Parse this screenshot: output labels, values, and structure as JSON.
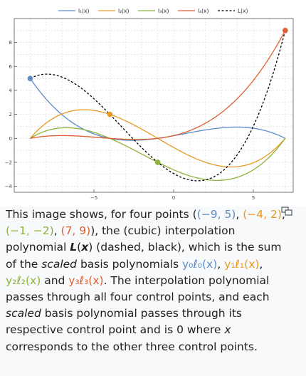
{
  "chart_data": {
    "type": "line",
    "xlim": [
      -10,
      7.5
    ],
    "ylim": [
      -4.5,
      10
    ],
    "xticks": [
      -5,
      0,
      5
    ],
    "yticks": [
      -4,
      -2,
      0,
      2,
      4,
      6,
      8
    ],
    "grid": true,
    "legend_position": "top",
    "points": [
      {
        "x": -9,
        "y": 5,
        "color": "#5c8cc7"
      },
      {
        "x": -4,
        "y": 2,
        "color": "#e69a20"
      },
      {
        "x": -1,
        "y": -2,
        "color": "#8db43a"
      },
      {
        "x": 7,
        "y": 9,
        "color": "#de6030"
      }
    ],
    "series": [
      {
        "name": "l₁(x)",
        "style": "solid",
        "color": "#5c8cc7"
      },
      {
        "name": "l₂(x)",
        "style": "solid",
        "color": "#e69a20"
      },
      {
        "name": "l₃(x)",
        "style": "solid",
        "color": "#8db43a"
      },
      {
        "name": "l₄(x)",
        "style": "solid",
        "color": "#de6030"
      },
      {
        "name": "L(x)",
        "style": "dashed",
        "color": "#000000"
      }
    ]
  },
  "caption": {
    "t1": "This image shows, for four points (",
    "p1": "(−9, 5)",
    "t2": ", ",
    "p2": "(−4, 2)",
    "t3": ", ",
    "p3": "(−1, −2)",
    "t4": ", ",
    "p4": "(7, 9)",
    "t5": "), the (cubic) interpolation polynomial ",
    "lx": "L",
    "t6": "(",
    "lxv": "x",
    "t7": ") (dashed, black), which is the sum of the ",
    "scaled1": "scaled",
    "t8": " basis polynomials ",
    "b0": "y₀ℓ₀(x)",
    "t9": ", ",
    "b1": "y₁ℓ₁(x)",
    "t10": ", ",
    "b2": "y₂ℓ₂(x)",
    "t11": " and ",
    "b3": "y₃ℓ₃(x)",
    "t12": ". The interpolation polynomial passes through all four control points, and each ",
    "scaled2": "scaled",
    "t13": " basis polynomial passes through its respective control point and is 0 where ",
    "xv": "x",
    "t14": " corresponds to the other three control points."
  },
  "icons": {
    "enlarge": "enlarge-icon"
  }
}
